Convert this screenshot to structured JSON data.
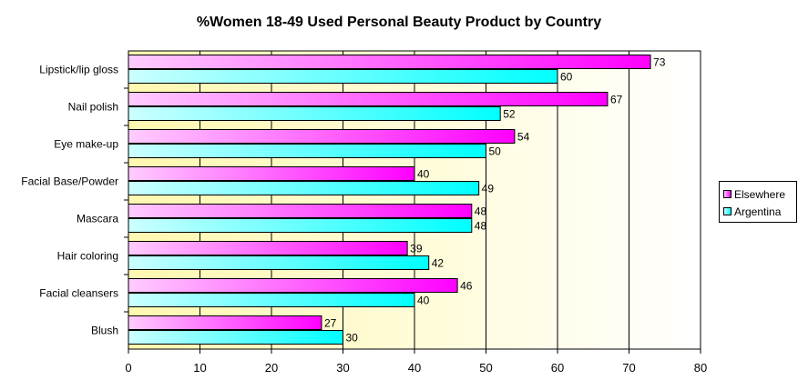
{
  "chart_data": {
    "type": "bar",
    "orientation": "horizontal",
    "title": "%Women 18-49 Used Personal Beauty Product by Country",
    "categories": [
      "Lipstick/lip gloss",
      "Nail polish",
      "Eye make-up",
      "Facial Base/Powder",
      "Mascara",
      "Hair coloring",
      "Facial cleansers",
      "Blush"
    ],
    "series": [
      {
        "name": "Elsewhere",
        "values": [
          73,
          67,
          54,
          40,
          48,
          39,
          46,
          27
        ],
        "color": "#ff00ff",
        "color_light": "#ffccff"
      },
      {
        "name": "Argentina",
        "values": [
          60,
          52,
          50,
          49,
          48,
          42,
          40,
          30
        ],
        "color": "#00ffff",
        "color_light": "#ccffff"
      }
    ],
    "xlim": [
      0,
      80
    ],
    "xticks": [
      0,
      10,
      20,
      30,
      40,
      50,
      60,
      70,
      80
    ],
    "xlabel": "",
    "ylabel": "",
    "grid": "vertical",
    "legend_position": "right",
    "plot_background": [
      "#fff8b0",
      "#ffffff"
    ],
    "data_labels": true
  }
}
